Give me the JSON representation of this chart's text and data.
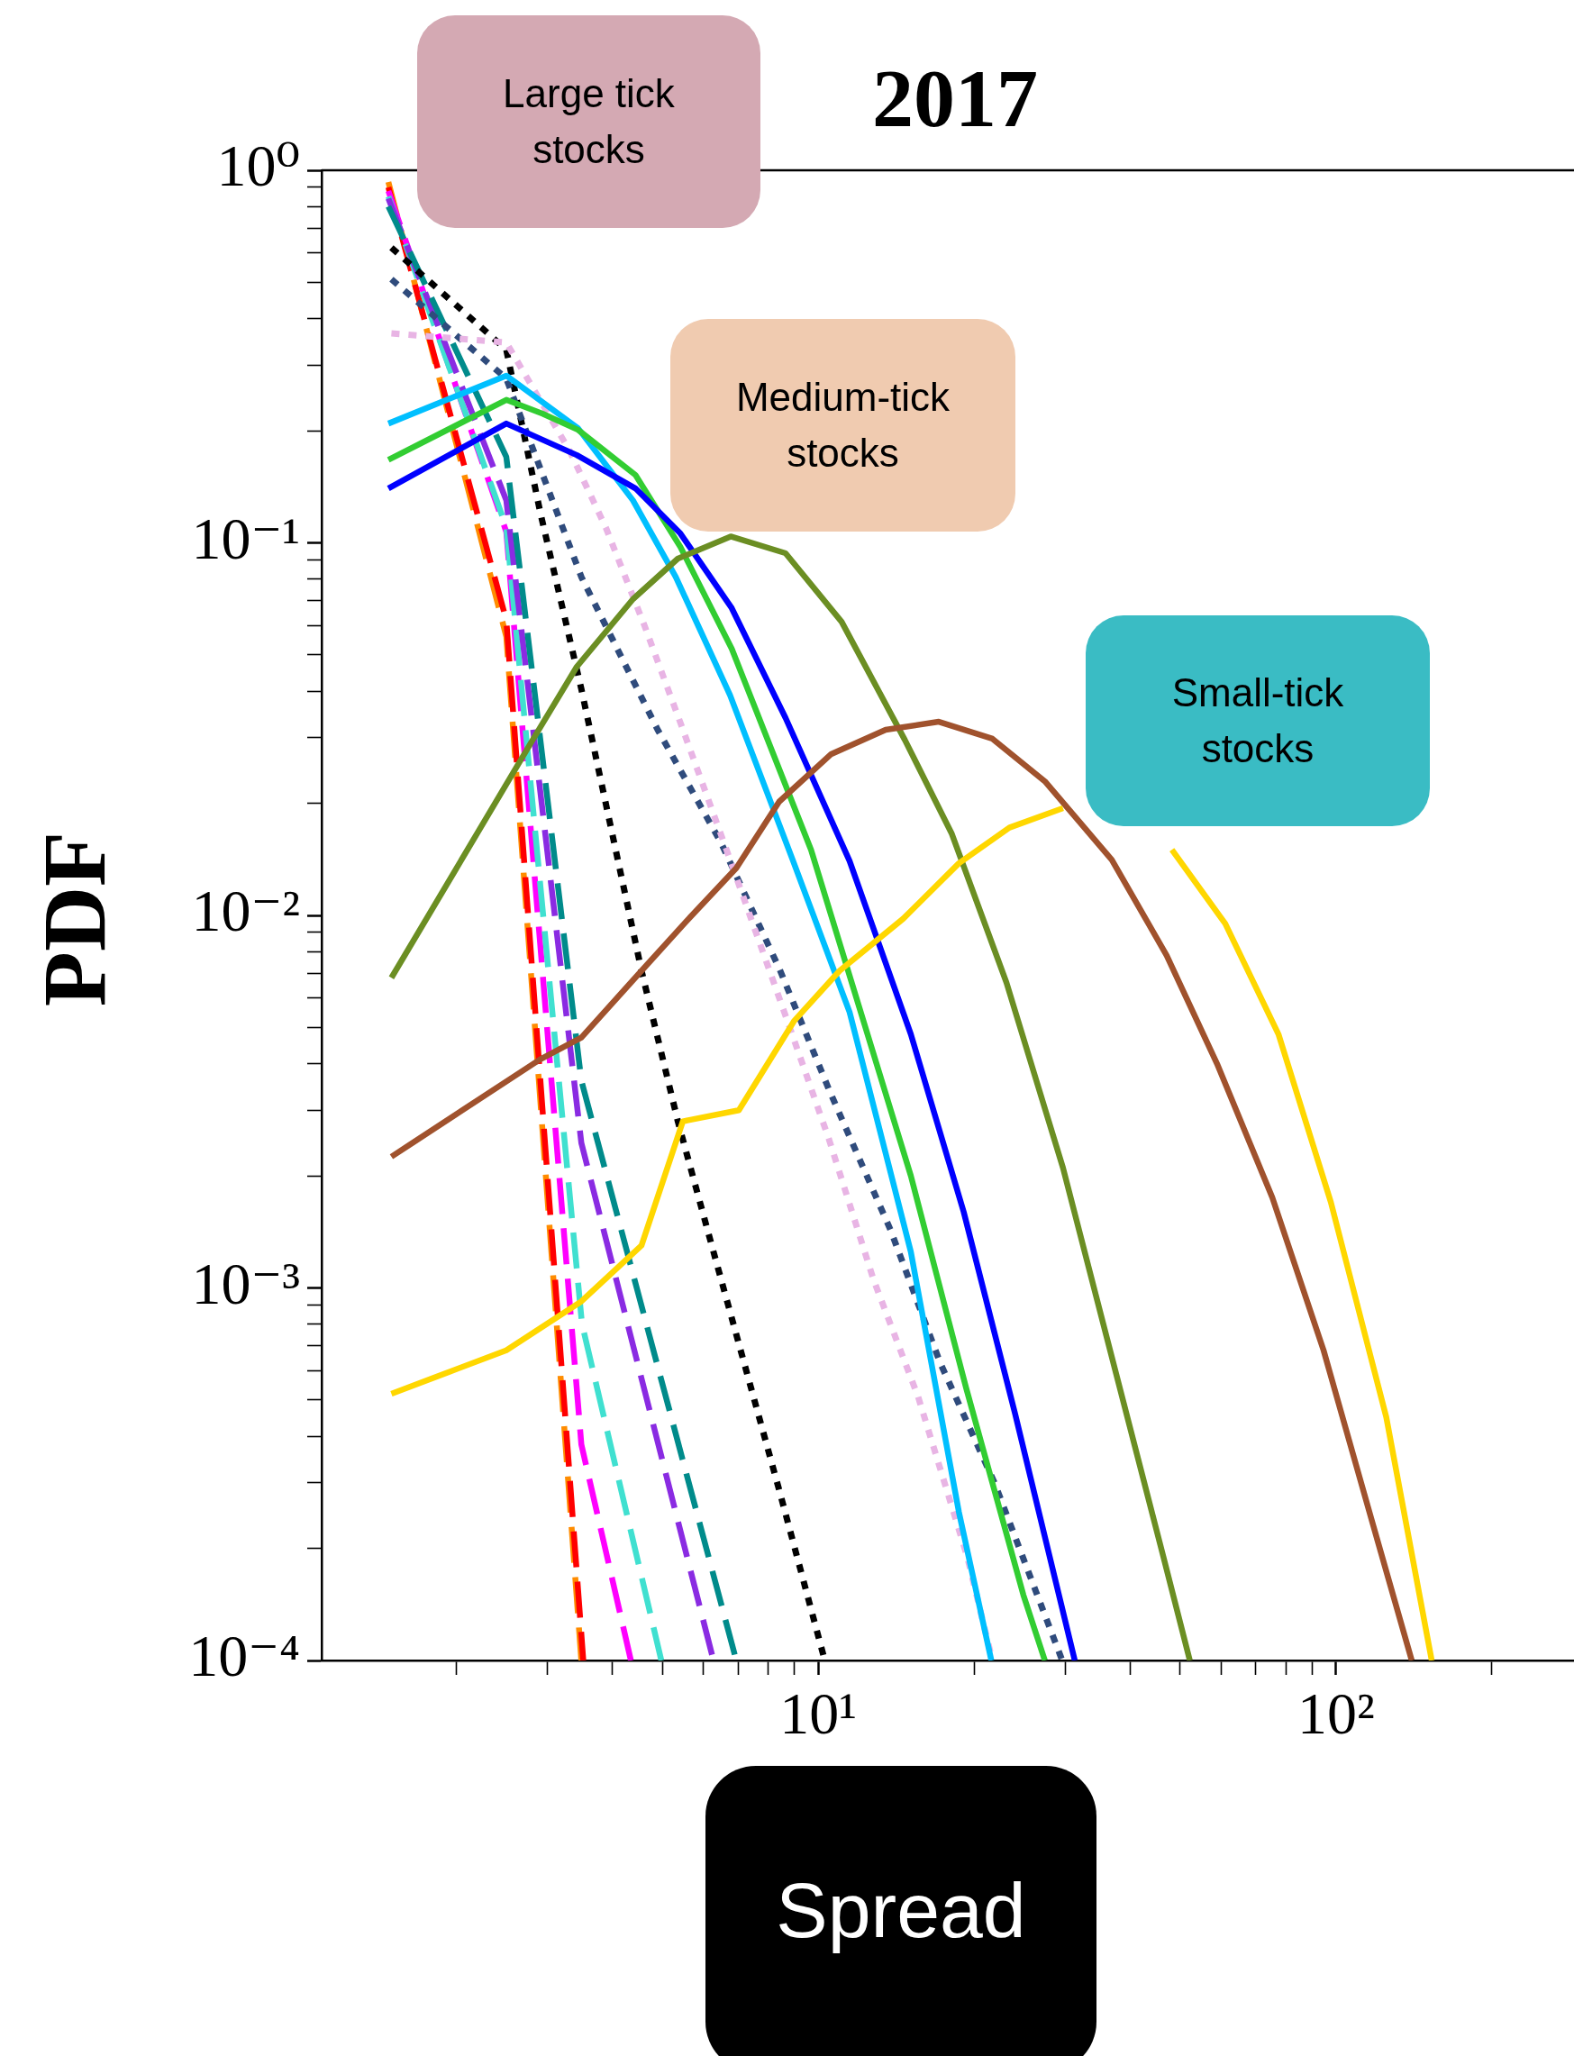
{
  "chart_data": {
    "type": "line",
    "title": "2017",
    "xlabel": "Spread",
    "ylabel": "PDF",
    "annotations": [
      "Large tick stocks",
      "Medium-tick stocks",
      "Small-tick stocks"
    ],
    "log": "xy",
    "grid": false,
    "legend": false,
    "xlim": [
      1.1,
      288
    ],
    "ylim": [
      0.0001,
      1
    ],
    "xticks": [
      {
        "value": 2,
        "label": null
      },
      {
        "value": 3,
        "label": null
      },
      {
        "value": 4,
        "label": null
      },
      {
        "value": 5,
        "label": null
      },
      {
        "value": 6,
        "label": null
      },
      {
        "value": 7,
        "label": null
      },
      {
        "value": 8,
        "label": null
      },
      {
        "value": 9,
        "label": null
      },
      {
        "value": 10,
        "label": "10¹"
      },
      {
        "value": 20,
        "label": null
      },
      {
        "value": 30,
        "label": null
      },
      {
        "value": 40,
        "label": null
      },
      {
        "value": 50,
        "label": null
      },
      {
        "value": 60,
        "label": null
      },
      {
        "value": 70,
        "label": null
      },
      {
        "value": 80,
        "label": null
      },
      {
        "value": 90,
        "label": null
      },
      {
        "value": 100,
        "label": "10²"
      },
      {
        "value": 200,
        "label": null
      }
    ],
    "yticks": [
      {
        "value": 0.0001,
        "label": "10⁻⁴"
      },
      {
        "value": 0.0002,
        "label": null
      },
      {
        "value": 0.0003,
        "label": null
      },
      {
        "value": 0.0004,
        "label": null
      },
      {
        "value": 0.0005,
        "label": null
      },
      {
        "value": 0.0006,
        "label": null
      },
      {
        "value": 0.0007,
        "label": null
      },
      {
        "value": 0.0008,
        "label": null
      },
      {
        "value": 0.0009,
        "label": null
      },
      {
        "value": 0.001,
        "label": "10⁻³"
      },
      {
        "value": 0.002,
        "label": null
      },
      {
        "value": 0.003,
        "label": null
      },
      {
        "value": 0.004,
        "label": null
      },
      {
        "value": 0.005,
        "label": null
      },
      {
        "value": 0.006,
        "label": null
      },
      {
        "value": 0.007,
        "label": null
      },
      {
        "value": 0.008,
        "label": null
      },
      {
        "value": 0.009,
        "label": null
      },
      {
        "value": 0.01,
        "label": "10⁻²"
      },
      {
        "value": 0.02,
        "label": null
      },
      {
        "value": 0.03,
        "label": null
      },
      {
        "value": 0.04,
        "label": null
      },
      {
        "value": 0.05,
        "label": null
      },
      {
        "value": 0.06,
        "label": null
      },
      {
        "value": 0.07,
        "label": null
      },
      {
        "value": 0.08,
        "label": null
      },
      {
        "value": 0.09,
        "label": null
      },
      {
        "value": 0.1,
        "label": "10⁻¹"
      },
      {
        "value": 0.2,
        "label": null
      },
      {
        "value": 0.3,
        "label": null
      },
      {
        "value": 0.4,
        "label": null
      },
      {
        "value": 0.5,
        "label": null
      },
      {
        "value": 0.6,
        "label": null
      },
      {
        "value": 0.7,
        "label": null
      },
      {
        "value": 0.8,
        "label": null
      },
      {
        "value": 0.9,
        "label": null
      },
      {
        "value": 1,
        "label": "10⁰"
      }
    ],
    "series": [
      {
        "color": "#ffd700",
        "line_style": "solid",
        "x": [
          1.5,
          2.5,
          3.49,
          4.56,
          5.48,
          7.03,
          8.98,
          11.0,
          14.6,
          18.7,
          23.4,
          29.7,
          37.8,
          48.2,
          61.1,
          77.4,
          97.7,
          125,
          153
        ],
        "values": [
          0.00052,
          0.00068,
          0.00092,
          0.0013,
          0.0028,
          0.003,
          0.0052,
          0.0071,
          0.0098,
          0.0138,
          0.0172,
          0.0194,
          null,
          0.015,
          0.0095,
          0.0048,
          0.0017,
          0.00045,
          0.0001
        ]
      },
      {
        "color": "#a0522d",
        "line_style": "solid",
        "x": [
          1.5,
          2.9,
          3.49,
          4.56,
          5.55,
          6.95,
          8.41,
          10.6,
          13.5,
          17.1,
          21.7,
          27.4,
          36.9,
          47.1,
          58.9,
          75.3,
          94.6,
          118,
          140
        ],
        "values": [
          0.00225,
          0.0041,
          0.0047,
          0.0071,
          0.0096,
          0.0134,
          0.0202,
          0.0271,
          0.0315,
          0.0331,
          0.0298,
          0.0229,
          0.0141,
          0.0078,
          0.004,
          0.00175,
          0.00068,
          0.00023,
          0.0001
        ]
      },
      {
        "color": "#6b8e23",
        "line_style": "solid",
        "x": [
          1.5,
          2.82,
          3.42,
          4.39,
          5.36,
          6.78,
          8.65,
          11.1,
          14.7,
          18.1,
          23.1,
          29.7,
          46.4,
          52.2
        ],
        "values": [
          0.0068,
          0.0298,
          0.0465,
          0.0706,
          0.0907,
          0.104,
          0.0938,
          0.0614,
          0.0296,
          0.0166,
          0.0066,
          0.0021,
          0.00019,
          0.0001
        ]
      },
      {
        "color": "#0000ff",
        "line_style": "solid",
        "x": [
          1.48,
          2.5,
          3.42,
          4.44,
          5.42,
          6.81,
          8.65,
          11.5,
          15.1,
          19.1,
          24.0,
          31.3
        ],
        "values": [
          0.14,
          0.209,
          0.172,
          0.14,
          0.106,
          0.0668,
          0.0339,
          0.014,
          0.0048,
          0.0016,
          0.00046,
          0.0001
        ]
      },
      {
        "color": "#32cd32",
        "line_style": "solid",
        "x": [
          1.48,
          2.5,
          2.94,
          3.44,
          4.44,
          5.42,
          6.81,
          9.69,
          15.1,
          19.3,
          24.9,
          27.4
        ],
        "values": [
          0.167,
          0.242,
          0.222,
          0.201,
          0.152,
          0.0975,
          0.052,
          0.015,
          0.002,
          0.00054,
          0.00015,
          0.0001
        ]
      },
      {
        "color": "#00bfff",
        "line_style": "solid",
        "x": [
          1.48,
          2.5,
          3.44,
          4.39,
          5.31,
          6.76,
          8.93,
          11.5,
          15.1,
          18.7,
          21.6
        ],
        "values": [
          0.209,
          0.281,
          0.203,
          0.13,
          0.081,
          0.039,
          0.0141,
          0.0055,
          0.00125,
          0.00025,
          0.0001
        ]
      },
      {
        "color": "#e8b4e4",
        "line_style": "dotted",
        "x": [
          1.5,
          2.5,
          3.31,
          3.89,
          4.62,
          5.46,
          6.62,
          7.46,
          8.77,
          10.5,
          12.8,
          15.6,
          19.4,
          21.7
        ],
        "values": [
          0.365,
          0.345,
          0.177,
          0.11,
          0.06,
          0.032,
          0.0153,
          0.0096,
          0.0051,
          0.0025,
          0.00105,
          0.00051,
          0.00019,
          0.0001
        ]
      },
      {
        "color": "#2f4b7c",
        "line_style": "dotted",
        "x": [
          1.5,
          2.5,
          3.49,
          4.9,
          6.49,
          8.45,
          10.5,
          13.8,
          17.2,
          21.9,
          29.6
        ],
        "values": [
          0.51,
          0.276,
          0.081,
          0.0315,
          0.0157,
          0.0071,
          0.0034,
          0.00143,
          0.00063,
          0.0003,
          0.0001
        ]
      },
      {
        "color": "#000000",
        "line_style": "dotted",
        "x": [
          1.5,
          2.5,
          2.91,
          3.49,
          4.56,
          5.36,
          6.28,
          8.45,
          10.3
        ],
        "values": [
          0.62,
          0.33,
          0.12,
          0.0405,
          0.0071,
          0.0028,
          0.00125,
          0.00028,
          0.0001
        ]
      },
      {
        "color": "#008b8b",
        "line_style": "dashed",
        "x": [
          1.48,
          2.5,
          3.49,
          6.95
        ],
        "values": [
          0.8,
          0.17,
          0.0036,
          0.0001
        ]
      },
      {
        "color": "#8a2be2",
        "line_style": "dashed",
        "x": [
          1.48,
          2.5,
          3.49,
          6.28
        ],
        "values": [
          0.84,
          0.13,
          0.00245,
          0.0001
        ]
      },
      {
        "color": "#40e0d0",
        "line_style": "dashed",
        "x": [
          1.48,
          2.5,
          3.5,
          4.98
        ],
        "values": [
          0.85,
          0.11,
          0.0008,
          0.0001
        ]
      },
      {
        "color": "#ff00ff",
        "line_style": "dashed",
        "x": [
          1.48,
          2.5,
          3.49,
          4.35
        ],
        "values": [
          0.88,
          0.107,
          0.00038,
          0.0001
        ]
      },
      {
        "color": "#ff0000",
        "line_style": "dashed",
        "x": [
          1.48,
          2.5,
          3.52
        ],
        "values": [
          0.9,
          0.062,
          0.0001
        ]
      },
      {
        "color": "#ff8c00",
        "line_style": "dashed",
        "x": [
          1.48,
          2.5,
          3.49
        ],
        "values": [
          0.93,
          0.056,
          0.0001
        ]
      }
    ]
  }
}
